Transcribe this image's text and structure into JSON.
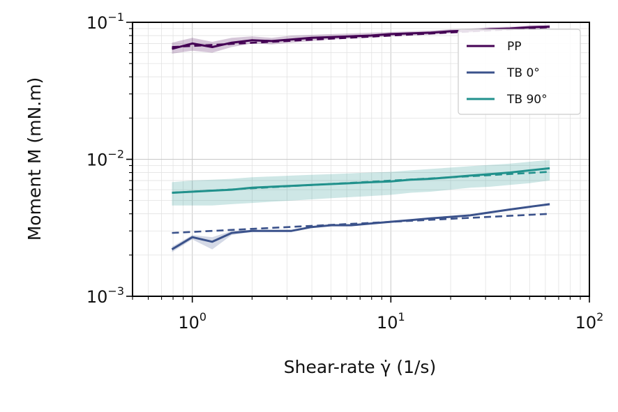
{
  "chart_data": {
    "type": "line",
    "title": "",
    "xlabel": "Shear-rate γ̇ (1/s)",
    "ylabel": "Moment M (mN.m)",
    "x_scale": "log",
    "y_scale": "log",
    "xlim": [
      0.5,
      100
    ],
    "ylim": [
      0.001,
      0.1
    ],
    "grid": true,
    "legend_position": "top-right",
    "x_ticks": [
      {
        "base": "10",
        "exp": "0"
      },
      {
        "base": "10",
        "exp": "1"
      },
      {
        "base": "10",
        "exp": "2"
      }
    ],
    "y_ticks": [
      {
        "base": "10",
        "exp": "−3"
      },
      {
        "base": "10",
        "exp": "−2"
      },
      {
        "base": "10",
        "exp": "−1"
      }
    ],
    "x": [
      0.79,
      1.0,
      1.26,
      1.58,
      2.0,
      2.51,
      3.16,
      3.98,
      5.01,
      6.31,
      7.94,
      10.0,
      12.59,
      15.85,
      19.95,
      25.12,
      31.62,
      39.81,
      50.12,
      63.1
    ],
    "series": [
      {
        "name": "PP",
        "color": "#440154",
        "values": [
          0.064,
          0.07,
          0.066,
          0.071,
          0.074,
          0.073,
          0.075,
          0.077,
          0.078,
          0.079,
          0.08,
          0.082,
          0.083,
          0.084,
          0.086,
          0.087,
          0.089,
          0.09,
          0.092,
          0.093
        ],
        "band_low": [
          0.059,
          0.062,
          0.06,
          0.066,
          0.07,
          0.069,
          0.071,
          0.073,
          0.075,
          0.076,
          0.077,
          0.079,
          0.08,
          0.081,
          0.083,
          0.084,
          0.086,
          0.087,
          0.089,
          0.09
        ],
        "band_high": [
          0.071,
          0.077,
          0.072,
          0.077,
          0.079,
          0.077,
          0.08,
          0.081,
          0.082,
          0.083,
          0.084,
          0.085,
          0.086,
          0.087,
          0.089,
          0.09,
          0.092,
          0.093,
          0.095,
          0.096
        ],
        "fit": [
          [
            0.79,
            0.066
          ],
          [
            63.1,
            0.092
          ]
        ]
      },
      {
        "name": "TB 0°",
        "color": "#3b528b",
        "values": [
          0.0022,
          0.0027,
          0.0025,
          0.0029,
          0.003,
          0.003,
          0.003,
          0.0032,
          0.0033,
          0.0033,
          0.0034,
          0.0035,
          0.0036,
          0.0037,
          0.0038,
          0.0039,
          0.0041,
          0.0043,
          0.0045,
          0.0047
        ],
        "band_low": [
          0.0021,
          0.0026,
          0.0022,
          0.0028,
          0.00295,
          0.00295,
          0.00295,
          0.00315,
          0.00325,
          0.00325,
          0.00335,
          0.00345,
          0.00355,
          0.00365,
          0.00375,
          0.00385,
          0.00405,
          0.00425,
          0.00445,
          0.0046
        ],
        "band_high": [
          0.0023,
          0.0028,
          0.0027,
          0.003,
          0.00305,
          0.00305,
          0.00305,
          0.00325,
          0.00335,
          0.00335,
          0.00345,
          0.00355,
          0.00365,
          0.00375,
          0.00385,
          0.00395,
          0.00415,
          0.00435,
          0.00455,
          0.0048
        ],
        "fit": [
          [
            0.79,
            0.0029
          ],
          [
            63.1,
            0.004
          ]
        ]
      },
      {
        "name": "TB 90°",
        "color": "#21918c",
        "values": [
          0.0057,
          0.0058,
          0.0059,
          0.006,
          0.0062,
          0.0063,
          0.0064,
          0.0065,
          0.0066,
          0.0067,
          0.0068,
          0.0069,
          0.0071,
          0.0072,
          0.0074,
          0.0076,
          0.0078,
          0.008,
          0.0083,
          0.0086
        ],
        "band_low": [
          0.0046,
          0.0046,
          0.0046,
          0.0047,
          0.0048,
          0.0049,
          0.005,
          0.0051,
          0.0052,
          0.0053,
          0.0054,
          0.0055,
          0.0057,
          0.0058,
          0.006,
          0.0062,
          0.0063,
          0.0065,
          0.0067,
          0.007
        ],
        "band_high": [
          0.0068,
          0.007,
          0.0071,
          0.0072,
          0.0074,
          0.0075,
          0.0076,
          0.0077,
          0.0078,
          0.0079,
          0.008,
          0.0081,
          0.0083,
          0.0085,
          0.0087,
          0.0089,
          0.0091,
          0.0093,
          0.0096,
          0.0099
        ],
        "fit": [
          [
            0.79,
            0.0057
          ],
          [
            63.1,
            0.0081
          ]
        ]
      }
    ]
  }
}
